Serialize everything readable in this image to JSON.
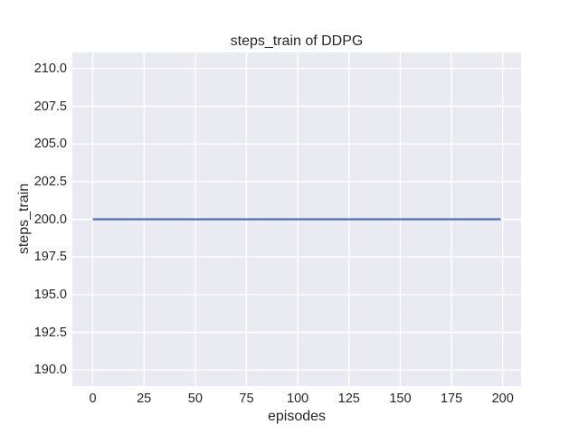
{
  "chart_data": {
    "type": "line",
    "title": "steps_train of DDPG",
    "xlabel": "episodes",
    "ylabel": "steps_train",
    "series": [
      {
        "name": "steps_train",
        "color": "#4C72B0",
        "x": [
          0,
          199
        ],
        "y": [
          200,
          200
        ],
        "note": "constant value 200 for every episode from 0 to 199"
      }
    ],
    "xlim": [
      -9.95,
      208.95
    ],
    "ylim": [
      188.93,
      211.07
    ],
    "x_ticks": [
      0,
      25,
      50,
      75,
      100,
      125,
      150,
      175,
      200
    ],
    "x_tick_labels": [
      "0",
      "25",
      "50",
      "75",
      "100",
      "125",
      "150",
      "175",
      "200"
    ],
    "y_ticks": [
      190.0,
      192.5,
      195.0,
      197.5,
      200.0,
      202.5,
      205.0,
      207.5,
      210.0
    ],
    "y_tick_labels": [
      "190.0",
      "192.5",
      "195.0",
      "197.5",
      "200.0",
      "202.5",
      "205.0",
      "207.5",
      "210.0"
    ],
    "grid": true,
    "legend": "none",
    "style": "seaborn-darkgrid",
    "colors": {
      "figure_background": "#FFFFFF",
      "axes_background": "#EAEAF2",
      "grid": "#FFFFFF",
      "text": "#262626",
      "line": "#4C72B0"
    }
  }
}
